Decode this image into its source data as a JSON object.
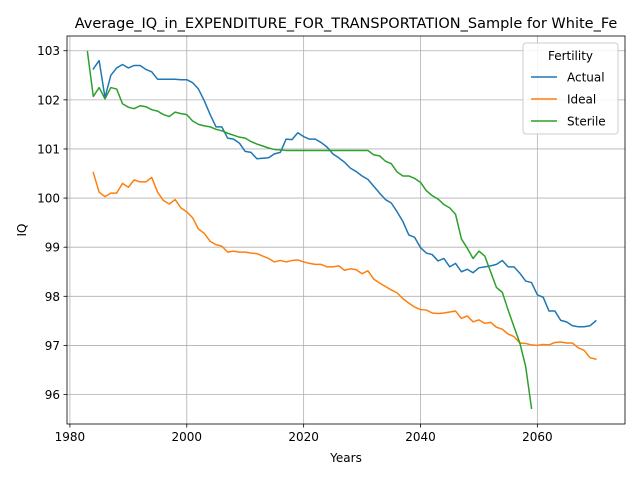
{
  "chart_data": {
    "type": "line",
    "title": "Average_IQ_in_EXPENDITURE_FOR_TRANSPORTATION_Sample for White_Fe",
    "xlabel": "Years",
    "ylabel": "IQ",
    "xlim": [
      1979.5,
      2075
    ],
    "ylim": [
      95.4,
      103.3
    ],
    "xticks": [
      1980,
      2000,
      2020,
      2040,
      2060
    ],
    "yticks": [
      96,
      97,
      98,
      99,
      100,
      101,
      102,
      103
    ],
    "grid": true,
    "legend": {
      "title": "Fertility",
      "placement": "top-right"
    },
    "series": [
      {
        "name": "Actual",
        "color": "#1f77b4",
        "x": [
          1984,
          1985,
          1986,
          1987,
          1988,
          1989,
          1990,
          1991,
          1992,
          1993,
          1994,
          1995,
          1996,
          1997,
          1998,
          1999,
          2000,
          2001,
          2002,
          2003,
          2004,
          2005,
          2006,
          2007,
          2008,
          2009,
          2010,
          2011,
          2012,
          2013,
          2014,
          2015,
          2016,
          2017,
          2018,
          2019,
          2020,
          2021,
          2022,
          2023,
          2024,
          2025,
          2026,
          2027,
          2028,
          2029,
          2030,
          2031,
          2032,
          2033,
          2034,
          2035,
          2036,
          2037,
          2038,
          2039,
          2040,
          2041,
          2042,
          2043,
          2044,
          2045,
          2046,
          2047,
          2048,
          2049,
          2050,
          2051,
          2052,
          2053,
          2054,
          2055,
          2056,
          2057,
          2058,
          2059,
          2060,
          2061,
          2062,
          2063,
          2064,
          2065,
          2066,
          2067,
          2068,
          2069,
          2070
        ],
        "y": [
          102.63,
          102.8,
          102.05,
          102.5,
          102.65,
          102.72,
          102.65,
          102.7,
          102.7,
          102.62,
          102.57,
          102.42,
          102.42,
          102.42,
          102.42,
          102.41,
          102.41,
          102.35,
          102.22,
          101.98,
          101.7,
          101.45,
          101.45,
          101.22,
          101.2,
          101.12,
          100.95,
          100.93,
          100.8,
          100.81,
          100.82,
          100.9,
          100.93,
          101.2,
          101.19,
          101.33,
          101.25,
          101.2,
          101.2,
          101.13,
          101.04,
          100.9,
          100.82,
          100.73,
          100.61,
          100.54,
          100.45,
          100.38,
          100.24,
          100.1,
          99.97,
          99.9,
          99.72,
          99.52,
          99.25,
          99.2,
          98.99,
          98.88,
          98.85,
          98.72,
          98.77,
          98.6,
          98.67,
          98.5,
          98.55,
          98.48,
          98.58,
          98.6,
          98.62,
          98.65,
          98.73,
          98.6,
          98.6,
          98.47,
          98.31,
          98.28,
          98.03,
          97.98,
          97.7,
          97.7,
          97.51,
          97.48,
          97.4,
          97.38,
          97.38,
          97.4,
          97.5
        ]
      },
      {
        "name": "Ideal",
        "color": "#ff7f0e",
        "x": [
          1984,
          1985,
          1986,
          1987,
          1988,
          1989,
          1990,
          1991,
          1992,
          1993,
          1994,
          1995,
          1996,
          1997,
          1998,
          1999,
          2000,
          2001,
          2002,
          2003,
          2004,
          2005,
          2006,
          2007,
          2008,
          2009,
          2010,
          2011,
          2012,
          2013,
          2014,
          2015,
          2016,
          2017,
          2018,
          2019,
          2020,
          2021,
          2022,
          2023,
          2024,
          2025,
          2026,
          2027,
          2028,
          2029,
          2030,
          2031,
          2032,
          2033,
          2034,
          2035,
          2036,
          2037,
          2038,
          2039,
          2040,
          2041,
          2042,
          2043,
          2044,
          2045,
          2046,
          2047,
          2048,
          2049,
          2050,
          2051,
          2052,
          2053,
          2054,
          2055,
          2056,
          2057,
          2058,
          2059,
          2060,
          2061,
          2062,
          2063,
          2064,
          2065,
          2066,
          2067,
          2068,
          2069,
          2070
        ],
        "y": [
          100.52,
          100.12,
          100.03,
          100.1,
          100.1,
          100.3,
          100.22,
          100.37,
          100.33,
          100.33,
          100.42,
          100.12,
          99.95,
          99.88,
          99.97,
          99.8,
          99.72,
          99.6,
          99.37,
          99.28,
          99.12,
          99.05,
          99.02,
          98.9,
          98.92,
          98.9,
          98.9,
          98.88,
          98.87,
          98.82,
          98.77,
          98.7,
          98.73,
          98.7,
          98.73,
          98.74,
          98.7,
          98.67,
          98.65,
          98.65,
          98.6,
          98.6,
          98.62,
          98.53,
          98.56,
          98.54,
          98.46,
          98.52,
          98.35,
          98.27,
          98.2,
          98.13,
          98.07,
          97.95,
          97.86,
          97.78,
          97.73,
          97.72,
          97.66,
          97.65,
          97.66,
          97.68,
          97.7,
          97.55,
          97.6,
          97.48,
          97.52,
          97.45,
          97.47,
          97.37,
          97.33,
          97.23,
          97.18,
          97.05,
          97.04,
          97.01,
          97.0,
          97.02,
          97.01,
          97.06,
          97.07,
          97.05,
          97.05,
          96.95,
          96.9,
          96.75,
          96.72
        ]
      },
      {
        "name": "Sterile",
        "color": "#2ca02c",
        "x": [
          1983,
          1984,
          1985,
          1986,
          1987,
          1988,
          1989,
          1990,
          1991,
          1992,
          1993,
          1994,
          1995,
          1996,
          1997,
          1998,
          1999,
          2000,
          2001,
          2002,
          2003,
          2004,
          2005,
          2006,
          2007,
          2008,
          2009,
          2010,
          2011,
          2012,
          2013,
          2014,
          2015,
          2016,
          2017,
          2018,
          2019,
          2020,
          2021,
          2022,
          2023,
          2024,
          2025,
          2026,
          2027,
          2028,
          2029,
          2030,
          2031,
          2032,
          2033,
          2034,
          2035,
          2036,
          2037,
          2038,
          2039,
          2040,
          2041,
          2042,
          2043,
          2044,
          2045,
          2046,
          2047,
          2048,
          2049,
          2050,
          2051,
          2052,
          2053,
          2054,
          2055,
          2056,
          2057,
          2058,
          2059
        ],
        "y": [
          102.98,
          102.07,
          102.25,
          102.02,
          102.25,
          102.22,
          101.92,
          101.85,
          101.82,
          101.88,
          101.86,
          101.8,
          101.77,
          101.7,
          101.66,
          101.75,
          101.72,
          101.7,
          101.57,
          101.5,
          101.47,
          101.45,
          101.4,
          101.37,
          101.32,
          101.28,
          101.24,
          101.22,
          101.15,
          101.1,
          101.06,
          101.02,
          100.99,
          100.98,
          100.97,
          100.97,
          100.97,
          100.97,
          100.97,
          100.97,
          100.97,
          100.97,
          100.97,
          100.97,
          100.97,
          100.97,
          100.97,
          100.97,
          100.97,
          100.88,
          100.86,
          100.75,
          100.7,
          100.53,
          100.45,
          100.45,
          100.4,
          100.32,
          100.15,
          100.05,
          99.98,
          99.87,
          99.8,
          99.67,
          99.17,
          98.98,
          98.77,
          98.92,
          98.82,
          98.5,
          98.18,
          98.08,
          97.72,
          97.38,
          97.05,
          96.57,
          95.72
        ]
      }
    ]
  }
}
